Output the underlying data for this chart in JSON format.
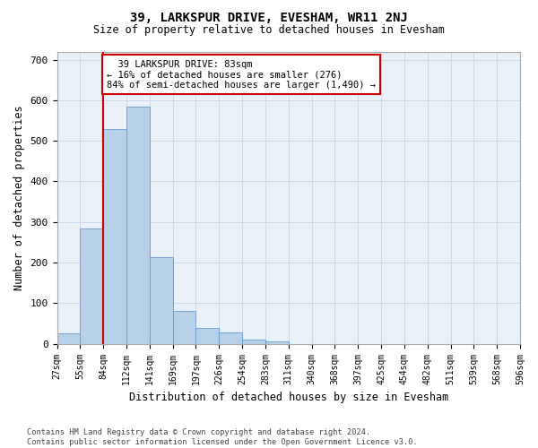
{
  "title": "39, LARKSPUR DRIVE, EVESHAM, WR11 2NJ",
  "subtitle": "Size of property relative to detached houses in Evesham",
  "xlabel": "Distribution of detached houses by size in Evesham",
  "ylabel": "Number of detached properties",
  "bar_color": "#b8d0e8",
  "bar_edge_color": "#6699cc",
  "bar_values": [
    25,
    285,
    530,
    585,
    213,
    80,
    38,
    27,
    10,
    7,
    0,
    0,
    0,
    0,
    0,
    0,
    0,
    0,
    0,
    0
  ],
  "bin_labels": [
    "27sqm",
    "55sqm",
    "84sqm",
    "112sqm",
    "141sqm",
    "169sqm",
    "197sqm",
    "226sqm",
    "254sqm",
    "283sqm",
    "311sqm",
    "340sqm",
    "368sqm",
    "397sqm",
    "425sqm",
    "454sqm",
    "482sqm",
    "511sqm",
    "539sqm",
    "568sqm",
    "596sqm"
  ],
  "ylim": [
    0,
    720
  ],
  "yticks": [
    0,
    100,
    200,
    300,
    400,
    500,
    600,
    700
  ],
  "property_line_x": 2,
  "annotation_text": "  39 LARKSPUR DRIVE: 83sqm\n← 16% of detached houses are smaller (276)\n84% of semi-detached houses are larger (1,490) →",
  "annotation_box_color": "#ffffff",
  "annotation_box_edge": "#cc0000",
  "red_line_color": "#cc0000",
  "grid_color": "#ccd8e8",
  "bg_color": "#e8f0f8",
  "footer_text": "Contains HM Land Registry data © Crown copyright and database right 2024.\nContains public sector information licensed under the Open Government Licence v3.0."
}
